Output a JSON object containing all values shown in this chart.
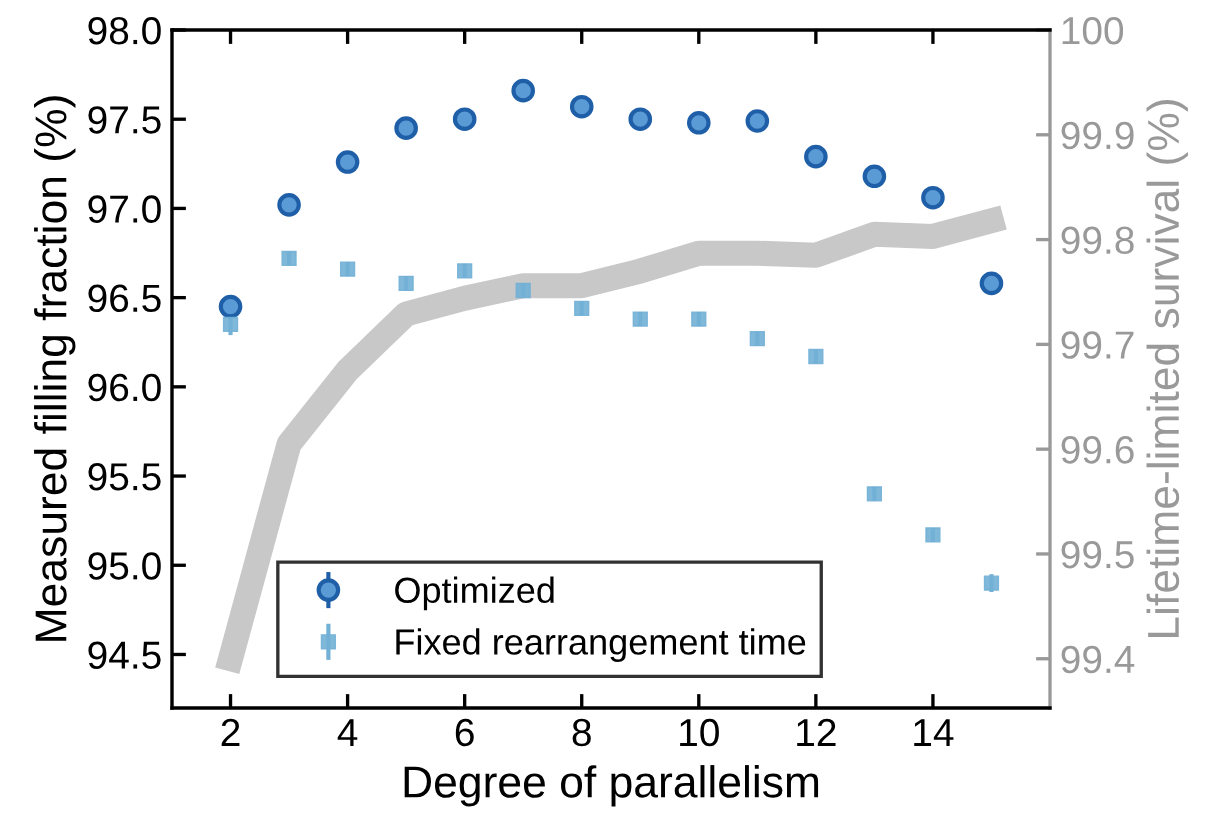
{
  "chart_data": {
    "type": "scatter",
    "xlabel": "Degree of parallelism",
    "ylabel": "Measured filling fraction (%)",
    "y2label": "Lifetime-limited survival (%)",
    "x": [
      2,
      3,
      4,
      5,
      6,
      7,
      8,
      9,
      10,
      11,
      12,
      13,
      14,
      15
    ],
    "xlim": [
      1,
      16
    ],
    "xticks": [
      2,
      4,
      6,
      8,
      10,
      12,
      14
    ],
    "ylim": [
      94.2,
      98.0
    ],
    "yticks": [
      94.5,
      {
        "value": 95,
        "label": "95.0"
      },
      95.5,
      {
        "value": 96,
        "label": "96.0"
      },
      96.5,
      {
        "value": 97,
        "label": "97.0"
      },
      97.5,
      {
        "value": 98,
        "label": "98.0"
      }
    ],
    "y2lim": [
      99.353,
      100
    ],
    "y2ticks": [
      99.4,
      99.5,
      99.6,
      99.7,
      99.8,
      99.9,
      100
    ],
    "legend": "bottom",
    "grid": false,
    "series": [
      {
        "name": "Optimized",
        "color": "#1f5fa8",
        "marker": "circle",
        "values": [
          96.45,
          97.02,
          97.26,
          97.45,
          97.5,
          97.66,
          97.57,
          97.5,
          97.48,
          97.49,
          97.29,
          97.18,
          97.06,
          96.58
        ],
        "errors": [
          0.06,
          0.06,
          0.05,
          0.05,
          0.05,
          0.03,
          0.03,
          0.03,
          0.03,
          0.03,
          0.03,
          0.03,
          0.03,
          0.03
        ]
      },
      {
        "name": "Fixed rearrangement time",
        "color": "#72b0d6",
        "marker": "square",
        "values": [
          96.35,
          96.72,
          96.66,
          96.58,
          96.65,
          96.54,
          96.44,
          96.38,
          96.38,
          96.27,
          96.17,
          95.4,
          95.17,
          94.9
        ],
        "errors": [
          0.06,
          0.04,
          0.04,
          0.04,
          0.04,
          0.04,
          0.04,
          0.04,
          0.04,
          0.04,
          0.04,
          0.04,
          0.04,
          0.05
        ]
      },
      {
        "color": "#c8c8c8",
        "type": "line",
        "axis": "y2",
        "marker": "none",
        "values": [
          99.4,
          99.605,
          99.675,
          99.729,
          99.744,
          99.756,
          99.756,
          99.77,
          99.787,
          99.787,
          99.785,
          99.805,
          99.803,
          99.818
        ]
      }
    ]
  }
}
